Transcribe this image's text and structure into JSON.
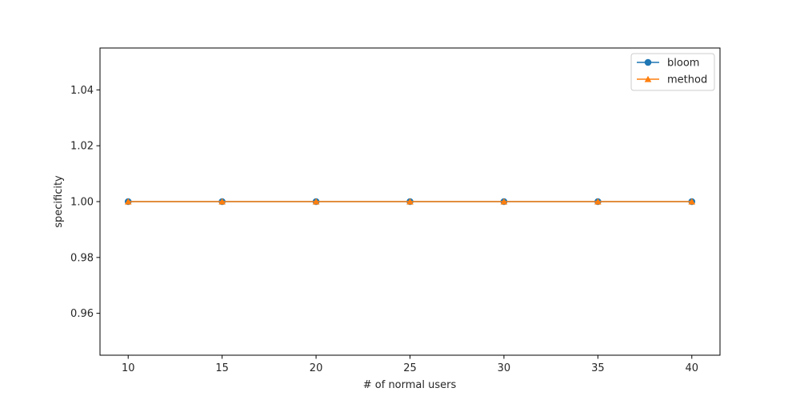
{
  "chart_data": {
    "type": "line",
    "xlabel": "# of normal users",
    "ylabel": "specificity",
    "x": [
      10,
      15,
      20,
      25,
      30,
      35,
      40
    ],
    "xlim": [
      8.5,
      41.5
    ],
    "ylim": [
      0.945,
      1.055
    ],
    "xticks": [
      10,
      15,
      20,
      25,
      30,
      35,
      40
    ],
    "yticks": [
      0.96,
      0.98,
      1.0,
      1.02,
      1.04
    ],
    "xtick_labels": [
      "10",
      "15",
      "20",
      "25",
      "30",
      "35",
      "40"
    ],
    "ytick_labels": [
      "0.96",
      "0.98",
      "1.00",
      "1.02",
      "1.04"
    ],
    "grid": false,
    "legend_position": "top-right",
    "series": [
      {
        "name": "bloom",
        "values": [
          1.0,
          1.0,
          1.0,
          1.0,
          1.0,
          1.0,
          1.0
        ],
        "color": "#1f77b4",
        "marker": "circle"
      },
      {
        "name": "method",
        "values": [
          1.0,
          1.0,
          1.0,
          1.0,
          1.0,
          1.0,
          1.0
        ],
        "color": "#ff7f0e",
        "marker": "triangle"
      }
    ]
  }
}
